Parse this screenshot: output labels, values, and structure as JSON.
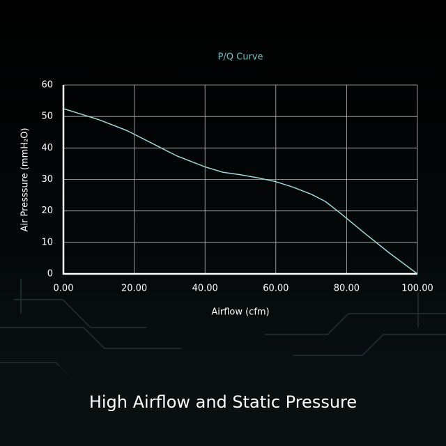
{
  "chart_data": {
    "type": "line",
    "title": "P/Q Curve",
    "x_label": "Airflow (cfm)",
    "y_label": "Air Presssure (mmH₂O)",
    "x": [
      0,
      10,
      18,
      25,
      32,
      40,
      45,
      50,
      55,
      60,
      65,
      70,
      74,
      78,
      85,
      92,
      100
    ],
    "values": [
      52.5,
      49,
      45.5,
      41.5,
      37.5,
      34,
      32.3,
      31.5,
      30.5,
      29.3,
      27.5,
      25.3,
      23,
      19.5,
      13,
      6.7,
      0
    ],
    "color": "#9fd8d6",
    "xlim": [
      0,
      100
    ],
    "xticks": [
      {
        "value": 0,
        "label": "0.00"
      },
      {
        "value": 20,
        "label": "20.00"
      },
      {
        "value": 40,
        "label": "40.00"
      },
      {
        "value": 60,
        "label": "60.00"
      },
      {
        "value": 80,
        "label": "80.00"
      },
      {
        "value": 100,
        "label": "100.00"
      }
    ],
    "ylim": [
      0,
      60
    ],
    "yticks": [
      0,
      10,
      20,
      30,
      40,
      50,
      60
    ],
    "grid": true
  },
  "caption": "High Airflow and Static Pressure"
}
